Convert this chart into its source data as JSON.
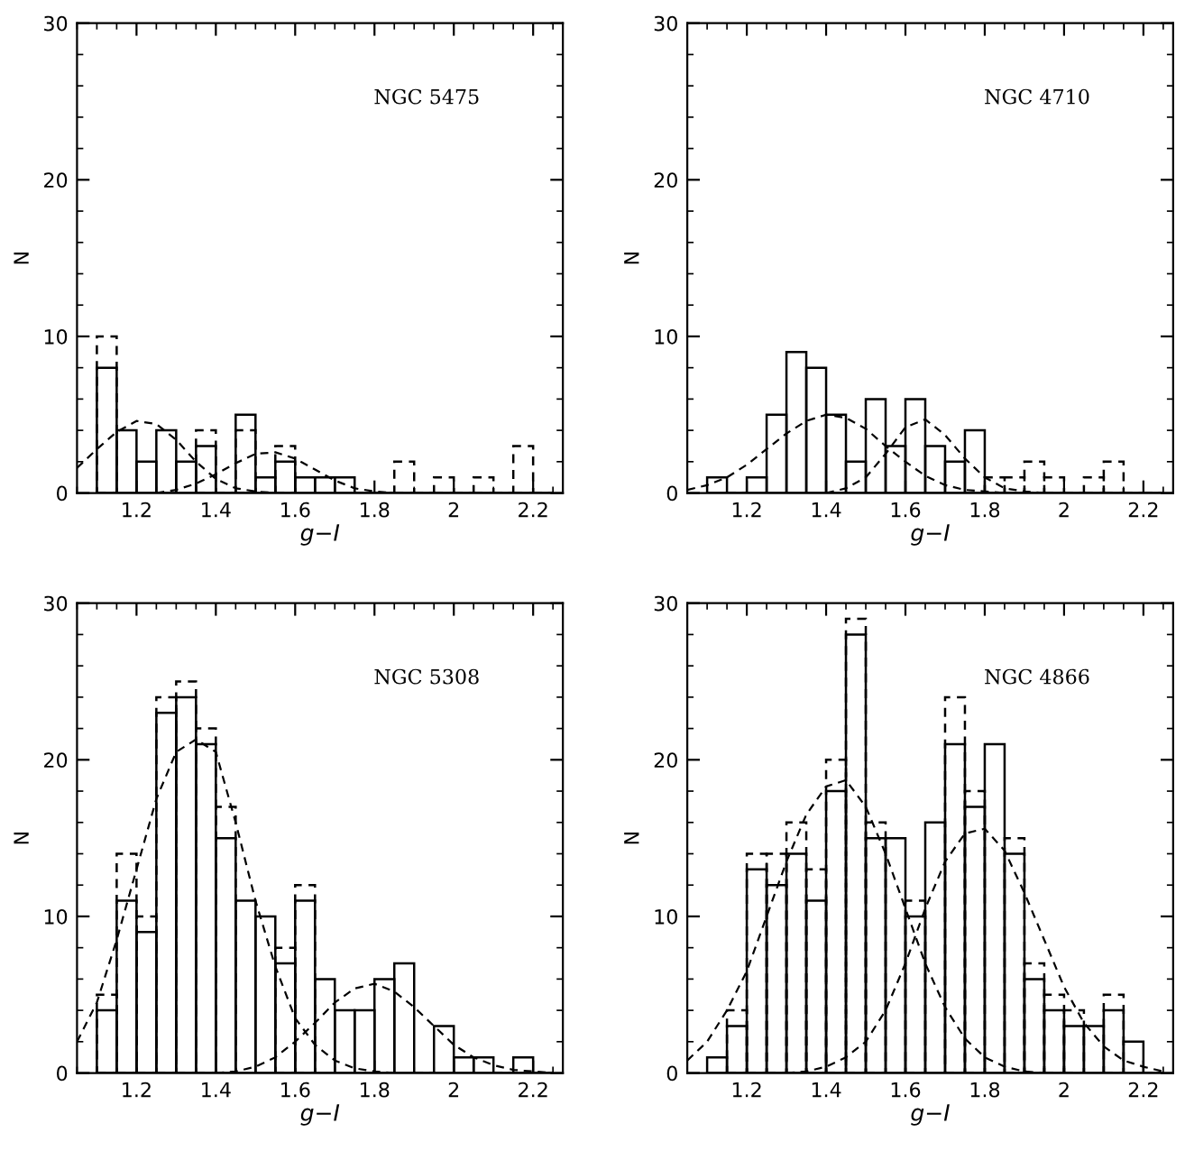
{
  "chart_data": [
    {
      "type": "histogram",
      "xlabel": "g−I",
      "ylabel": "N",
      "annotations": [
        "NGC 5475"
      ],
      "xlim": [
        1.05,
        2.275
      ],
      "ylim": [
        0,
        30
      ],
      "xticks": [
        1.2,
        1.4,
        1.6,
        1.8,
        2,
        2.2
      ],
      "yticks": [
        0,
        10,
        20,
        30
      ],
      "grid": false,
      "legend": false,
      "bins": [
        1.1,
        1.15,
        1.2,
        1.25,
        1.3,
        1.35,
        1.4,
        1.45,
        1.5,
        1.55,
        1.6,
        1.65,
        1.7,
        1.75,
        1.8,
        1.85,
        1.9,
        1.95,
        2.0,
        2.05,
        2.1,
        2.15,
        2.2,
        2.25
      ],
      "series": [
        {
          "type": "histogram",
          "color": "#000000",
          "line_style": "solid",
          "values": [
            8,
            4,
            2,
            4,
            2,
            3,
            0,
            5,
            1,
            2,
            1,
            1,
            1,
            0,
            0,
            0,
            0,
            0,
            0,
            0,
            0,
            0,
            0
          ]
        },
        {
          "type": "histogram",
          "color": "#000000",
          "line_style": "dashed",
          "values": [
            10,
            null,
            null,
            null,
            null,
            4,
            0,
            4,
            null,
            3,
            null,
            null,
            null,
            0,
            0,
            2,
            0,
            1,
            0,
            1,
            0,
            3,
            0
          ]
        },
        {
          "type": "line",
          "color": "#000000",
          "line_style": "dashed",
          "x": [
            1.05,
            1.1,
            1.15,
            1.2,
            1.25,
            1.3,
            1.35,
            1.4,
            1.45,
            1.5,
            1.55
          ],
          "values": [
            1.6,
            2.8,
            3.9,
            4.6,
            4.4,
            3.4,
            2.0,
            0.9,
            0.3,
            0.1,
            0
          ]
        },
        {
          "type": "line",
          "color": "#000000",
          "line_style": "dashed",
          "x": [
            1.25,
            1.3,
            1.35,
            1.4,
            1.45,
            1.5,
            1.55,
            1.6,
            1.65,
            1.7,
            1.75,
            1.8,
            1.85
          ],
          "values": [
            0,
            0.2,
            0.6,
            1.2,
            1.9,
            2.5,
            2.6,
            2.2,
            1.5,
            0.8,
            0.3,
            0.1,
            0
          ]
        }
      ]
    },
    {
      "type": "histogram",
      "xlabel": "g−I",
      "ylabel": "N",
      "annotations": [
        "NGC 4710"
      ],
      "xlim": [
        1.05,
        2.275
      ],
      "ylim": [
        0,
        30
      ],
      "xticks": [
        1.2,
        1.4,
        1.6,
        1.8,
        2,
        2.2
      ],
      "yticks": [
        0,
        10,
        20,
        30
      ],
      "grid": false,
      "legend": false,
      "bins": [
        1.1,
        1.15,
        1.2,
        1.25,
        1.3,
        1.35,
        1.4,
        1.45,
        1.5,
        1.55,
        1.6,
        1.65,
        1.7,
        1.75,
        1.8,
        1.85,
        1.9,
        1.95,
        2.0,
        2.05,
        2.1,
        2.15,
        2.2,
        2.25
      ],
      "series": [
        {
          "type": "histogram",
          "color": "#000000",
          "line_style": "solid",
          "values": [
            1,
            0,
            1,
            5,
            9,
            8,
            5,
            2,
            6,
            3,
            6,
            3,
            2,
            4,
            0,
            0,
            0,
            0,
            0,
            0,
            0,
            0,
            0
          ]
        },
        {
          "type": "histogram",
          "color": "#000000",
          "line_style": "dashed",
          "values": [
            null,
            0,
            null,
            null,
            null,
            null,
            null,
            null,
            null,
            null,
            null,
            null,
            null,
            null,
            1,
            1,
            2,
            1,
            0,
            1,
            2,
            0,
            0
          ]
        },
        {
          "type": "line",
          "color": "#000000",
          "line_style": "dashed",
          "x": [
            1.05,
            1.1,
            1.15,
            1.2,
            1.25,
            1.3,
            1.35,
            1.4,
            1.45,
            1.5,
            1.55,
            1.6,
            1.65,
            1.7,
            1.75,
            1.8,
            1.85
          ],
          "values": [
            0.2,
            0.5,
            1.0,
            1.8,
            2.8,
            3.8,
            4.6,
            5.0,
            4.8,
            4.1,
            3.0,
            2.0,
            1.1,
            0.5,
            0.2,
            0.1,
            0
          ]
        },
        {
          "type": "line",
          "color": "#000000",
          "line_style": "dashed",
          "x": [
            1.4,
            1.45,
            1.5,
            1.55,
            1.6,
            1.65,
            1.7,
            1.75,
            1.8,
            1.85,
            1.9,
            1.95
          ],
          "values": [
            0,
            0.3,
            1.0,
            2.5,
            4.2,
            4.7,
            3.7,
            2.2,
            1.0,
            0.3,
            0.1,
            0
          ]
        }
      ]
    },
    {
      "type": "histogram",
      "xlabel": "g−I",
      "ylabel": "N",
      "annotations": [
        "NGC 5308"
      ],
      "xlim": [
        1.05,
        2.275
      ],
      "ylim": [
        0,
        30
      ],
      "xticks": [
        1.2,
        1.4,
        1.6,
        1.8,
        2,
        2.2
      ],
      "yticks": [
        0,
        10,
        20,
        30
      ],
      "grid": false,
      "legend": false,
      "bins": [
        1.1,
        1.15,
        1.2,
        1.25,
        1.3,
        1.35,
        1.4,
        1.45,
        1.5,
        1.55,
        1.6,
        1.65,
        1.7,
        1.75,
        1.8,
        1.85,
        1.9,
        1.95,
        2.0,
        2.05,
        2.1,
        2.15,
        2.2,
        2.25
      ],
      "series": [
        {
          "type": "histogram",
          "color": "#000000",
          "line_style": "solid",
          "values": [
            4,
            11,
            9,
            23,
            24,
            21,
            15,
            11,
            10,
            7,
            11,
            6,
            4,
            4,
            6,
            7,
            0,
            3,
            1,
            1,
            0,
            1,
            0
          ]
        },
        {
          "type": "histogram",
          "color": "#000000",
          "line_style": "dashed",
          "values": [
            5,
            14,
            10,
            24,
            25,
            22,
            17,
            null,
            null,
            8,
            12,
            null,
            null,
            null,
            null,
            null,
            0,
            null,
            null,
            null,
            0,
            null,
            0
          ]
        },
        {
          "type": "line",
          "color": "#000000",
          "line_style": "dashed",
          "x": [
            1.05,
            1.1,
            1.15,
            1.2,
            1.25,
            1.3,
            1.35,
            1.4,
            1.45,
            1.5,
            1.55,
            1.6,
            1.65,
            1.7,
            1.75,
            1.8,
            1.85
          ],
          "values": [
            2,
            4.5,
            8.5,
            13,
            17.5,
            20.5,
            21.3,
            20.5,
            16,
            11,
            6.8,
            3.5,
            1.8,
            0.8,
            0.3,
            0.1,
            0
          ]
        },
        {
          "type": "line",
          "color": "#000000",
          "line_style": "dashed",
          "x": [
            1.4,
            1.45,
            1.5,
            1.55,
            1.6,
            1.65,
            1.7,
            1.75,
            1.8,
            1.85,
            1.9,
            1.95,
            2.0,
            2.05,
            2.1,
            2.15,
            2.2,
            2.25
          ],
          "values": [
            0,
            0.1,
            0.4,
            1.0,
            2.0,
            3.2,
            4.5,
            5.4,
            5.7,
            5.2,
            4.2,
            3.0,
            1.8,
            1.0,
            0.5,
            0.2,
            0.1,
            0
          ]
        }
      ]
    },
    {
      "type": "histogram",
      "xlabel": "g−I",
      "ylabel": "N",
      "annotations": [
        "NGC 4866"
      ],
      "xlim": [
        1.05,
        2.275
      ],
      "ylim": [
        0,
        30
      ],
      "xticks": [
        1.2,
        1.4,
        1.6,
        1.8,
        2,
        2.2
      ],
      "yticks": [
        0,
        10,
        20,
        30
      ],
      "grid": false,
      "legend": false,
      "bins": [
        1.1,
        1.15,
        1.2,
        1.25,
        1.3,
        1.35,
        1.4,
        1.45,
        1.5,
        1.55,
        1.6,
        1.65,
        1.7,
        1.75,
        1.8,
        1.85,
        1.9,
        1.95,
        2.0,
        2.05,
        2.1,
        2.15,
        2.2,
        2.25
      ],
      "series": [
        {
          "type": "histogram",
          "color": "#000000",
          "line_style": "solid",
          "values": [
            1,
            3,
            13,
            12,
            14,
            11,
            18,
            28,
            15,
            15,
            10,
            16,
            21,
            17,
            21,
            14,
            6,
            4,
            3,
            3,
            4,
            2,
            0
          ]
        },
        {
          "type": "histogram",
          "color": "#000000",
          "line_style": "dashed",
          "values": [
            null,
            4,
            14,
            14,
            16,
            13,
            20,
            29,
            16,
            null,
            11,
            null,
            24,
            18,
            null,
            15,
            7,
            5,
            4,
            null,
            5,
            null,
            0
          ]
        },
        {
          "type": "line",
          "color": "#000000",
          "line_style": "dashed",
          "x": [
            1.05,
            1.1,
            1.15,
            1.2,
            1.25,
            1.3,
            1.35,
            1.4,
            1.45,
            1.5,
            1.55,
            1.6,
            1.65,
            1.7,
            1.75,
            1.8,
            1.85,
            1.9,
            1.95
          ],
          "values": [
            0.8,
            2,
            4,
            6.5,
            10,
            13.5,
            16.5,
            18.3,
            18.7,
            17,
            14,
            10.5,
            7,
            4.2,
            2.2,
            1,
            0.4,
            0.1,
            0
          ]
        },
        {
          "type": "line",
          "color": "#000000",
          "line_style": "dashed",
          "x": [
            1.3,
            1.35,
            1.4,
            1.45,
            1.5,
            1.55,
            1.6,
            1.65,
            1.7,
            1.75,
            1.8,
            1.85,
            1.9,
            1.95,
            2.0,
            2.05,
            2.1,
            2.15,
            2.2,
            2.25
          ],
          "values": [
            0,
            0.1,
            0.4,
            1,
            2,
            4,
            7,
            10.5,
            13.5,
            15.3,
            15.6,
            14.2,
            11.5,
            8.5,
            5.5,
            3.2,
            1.7,
            0.8,
            0.4,
            0.1
          ]
        }
      ]
    }
  ]
}
